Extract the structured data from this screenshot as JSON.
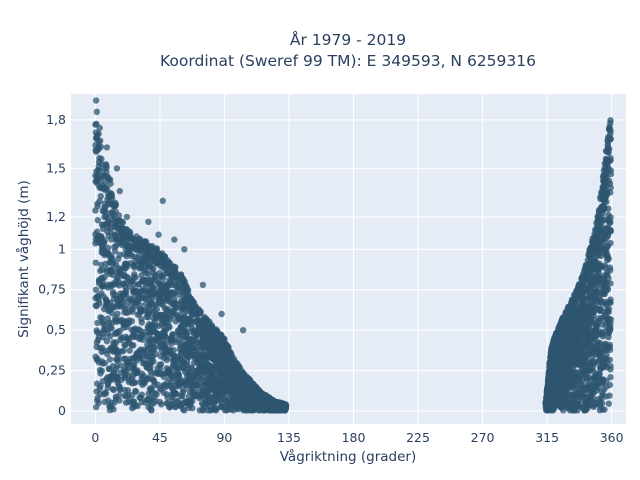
{
  "chart_data": {
    "type": "scatter",
    "title": [
      "År 1979 - 2019",
      "Koordinat (Sweref 99 TM): E 349593, N 6259316"
    ],
    "xlabel": "Vågriktning (grader)",
    "ylabel": "Signifikant våghöjd (m)",
    "xlim": [
      -17,
      370
    ],
    "ylim": [
      -0.08,
      1.96
    ],
    "xticks": [
      0,
      45,
      90,
      135,
      180,
      225,
      270,
      315,
      360
    ],
    "xtick_labels": [
      "0",
      "45",
      "90",
      "135",
      "180",
      "225",
      "270",
      "315",
      "360"
    ],
    "yticks": [
      0,
      0.25,
      0.5,
      0.75,
      1,
      1.2,
      1.5,
      1.8
    ],
    "ytick_labels": [
      "0",
      "0,25",
      "0,5",
      "0,75",
      "1",
      "1,2",
      "1,5",
      "1,8"
    ],
    "grid": true,
    "legend": "none",
    "marker_color": "#2e5570",
    "marker_opacity": 0.75,
    "plot_background": "#e5ecf6",
    "envelope": {
      "cluster_low_direction": {
        "x": [
          0,
          1,
          3,
          5,
          10,
          15,
          20,
          25,
          30,
          35,
          40,
          45,
          50,
          55,
          60,
          65,
          70,
          75,
          80,
          85,
          90,
          95,
          100,
          105,
          110,
          115,
          120,
          125,
          130,
          133
        ],
        "ymax": [
          1.9,
          1.8,
          1.7,
          1.6,
          1.45,
          1.25,
          1.15,
          1.1,
          1.08,
          1.05,
          1.02,
          1.0,
          0.96,
          0.9,
          0.85,
          0.75,
          0.65,
          0.6,
          0.55,
          0.5,
          0.45,
          0.35,
          0.28,
          0.22,
          0.17,
          0.12,
          0.09,
          0.06,
          0.05,
          0.04
        ],
        "ymin": 0.0
      },
      "cluster_high_direction": {
        "x": [
          314,
          318,
          322,
          326,
          330,
          334,
          338,
          342,
          346,
          350,
          354,
          356,
          358,
          359.5
        ],
        "ymax": [
          0.05,
          0.4,
          0.5,
          0.58,
          0.65,
          0.72,
          0.8,
          0.9,
          1.05,
          1.2,
          1.45,
          1.6,
          1.75,
          1.82
        ],
        "ymin": 0.0
      }
    },
    "outliers": [
      {
        "x": 0.5,
        "y": 1.92
      },
      {
        "x": 1,
        "y": 1.85
      },
      {
        "x": 3,
        "y": 1.75
      },
      {
        "x": 8,
        "y": 1.63
      },
      {
        "x": 15,
        "y": 1.5
      },
      {
        "x": 17,
        "y": 1.36
      },
      {
        "x": 22,
        "y": 1.2
      },
      {
        "x": 37,
        "y": 1.17
      },
      {
        "x": 47,
        "y": 1.3
      },
      {
        "x": 44,
        "y": 1.09
      },
      {
        "x": 55,
        "y": 1.06
      },
      {
        "x": 62,
        "y": 1.0
      },
      {
        "x": 75,
        "y": 0.78
      },
      {
        "x": 88,
        "y": 0.6
      },
      {
        "x": 103,
        "y": 0.5
      }
    ]
  }
}
